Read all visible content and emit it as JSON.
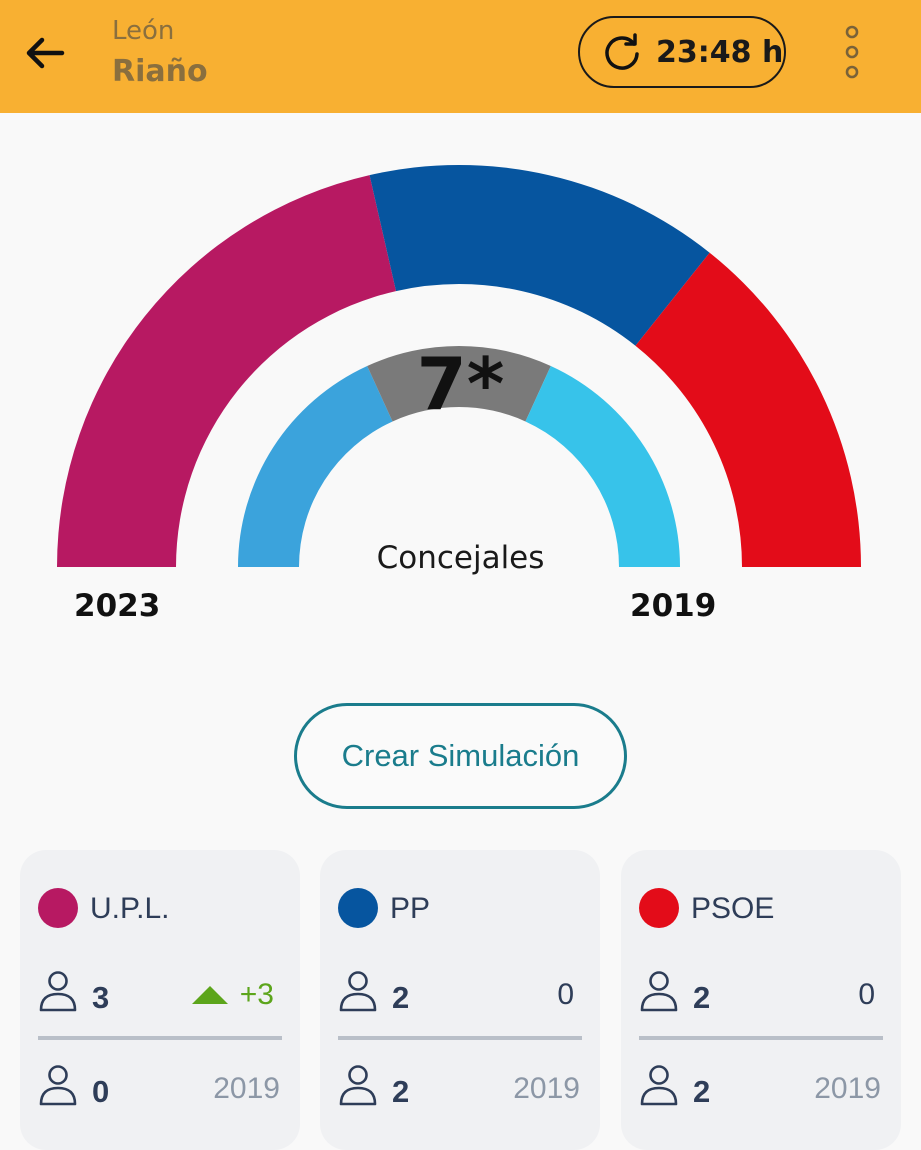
{
  "header": {
    "region": "León",
    "town": "Riaño",
    "time": "23:48 h",
    "back_icon": "arrow-left-icon",
    "refresh_icon": "refresh-icon",
    "menu_icon": "more-vertical-icon",
    "background_color": "#f8b032"
  },
  "chart_data": {
    "type": "pie",
    "title": "",
    "total_label": "7*",
    "total_caption": "Concejales",
    "outer_ring_year": "2023",
    "inner_ring_year": "2019",
    "rings": [
      {
        "year": "2023",
        "slices": [
          {
            "party": "U.P.L.",
            "seats": 3,
            "color": "#b71962"
          },
          {
            "party": "PP",
            "seats": 2,
            "color": "#06559f"
          },
          {
            "party": "PSOE",
            "seats": 2,
            "color": "#e30c19"
          }
        ]
      },
      {
        "year": "2019",
        "slices": [
          {
            "seats": 2,
            "color": "#3ba3dc"
          },
          {
            "seats": 1.5,
            "color": "#7a7a7a"
          },
          {
            "seats": 2,
            "color": "#37c3ea"
          }
        ]
      }
    ]
  },
  "simulation_button": {
    "label": "Crear Simulación"
  },
  "cards": [
    {
      "party": "U.P.L.",
      "color": "#b71962",
      "seats_2023": "3",
      "change": "+3",
      "change_dir": "up",
      "seats_2019": "0",
      "year": "2019"
    },
    {
      "party": "PP",
      "color": "#06559f",
      "seats_2023": "2",
      "change": "0",
      "change_dir": "none",
      "seats_2019": "2",
      "year": "2019"
    },
    {
      "party": "PSOE",
      "color": "#e30c19",
      "seats_2023": "2",
      "change": "0",
      "change_dir": "none",
      "seats_2019": "2",
      "year": "2019"
    }
  ]
}
